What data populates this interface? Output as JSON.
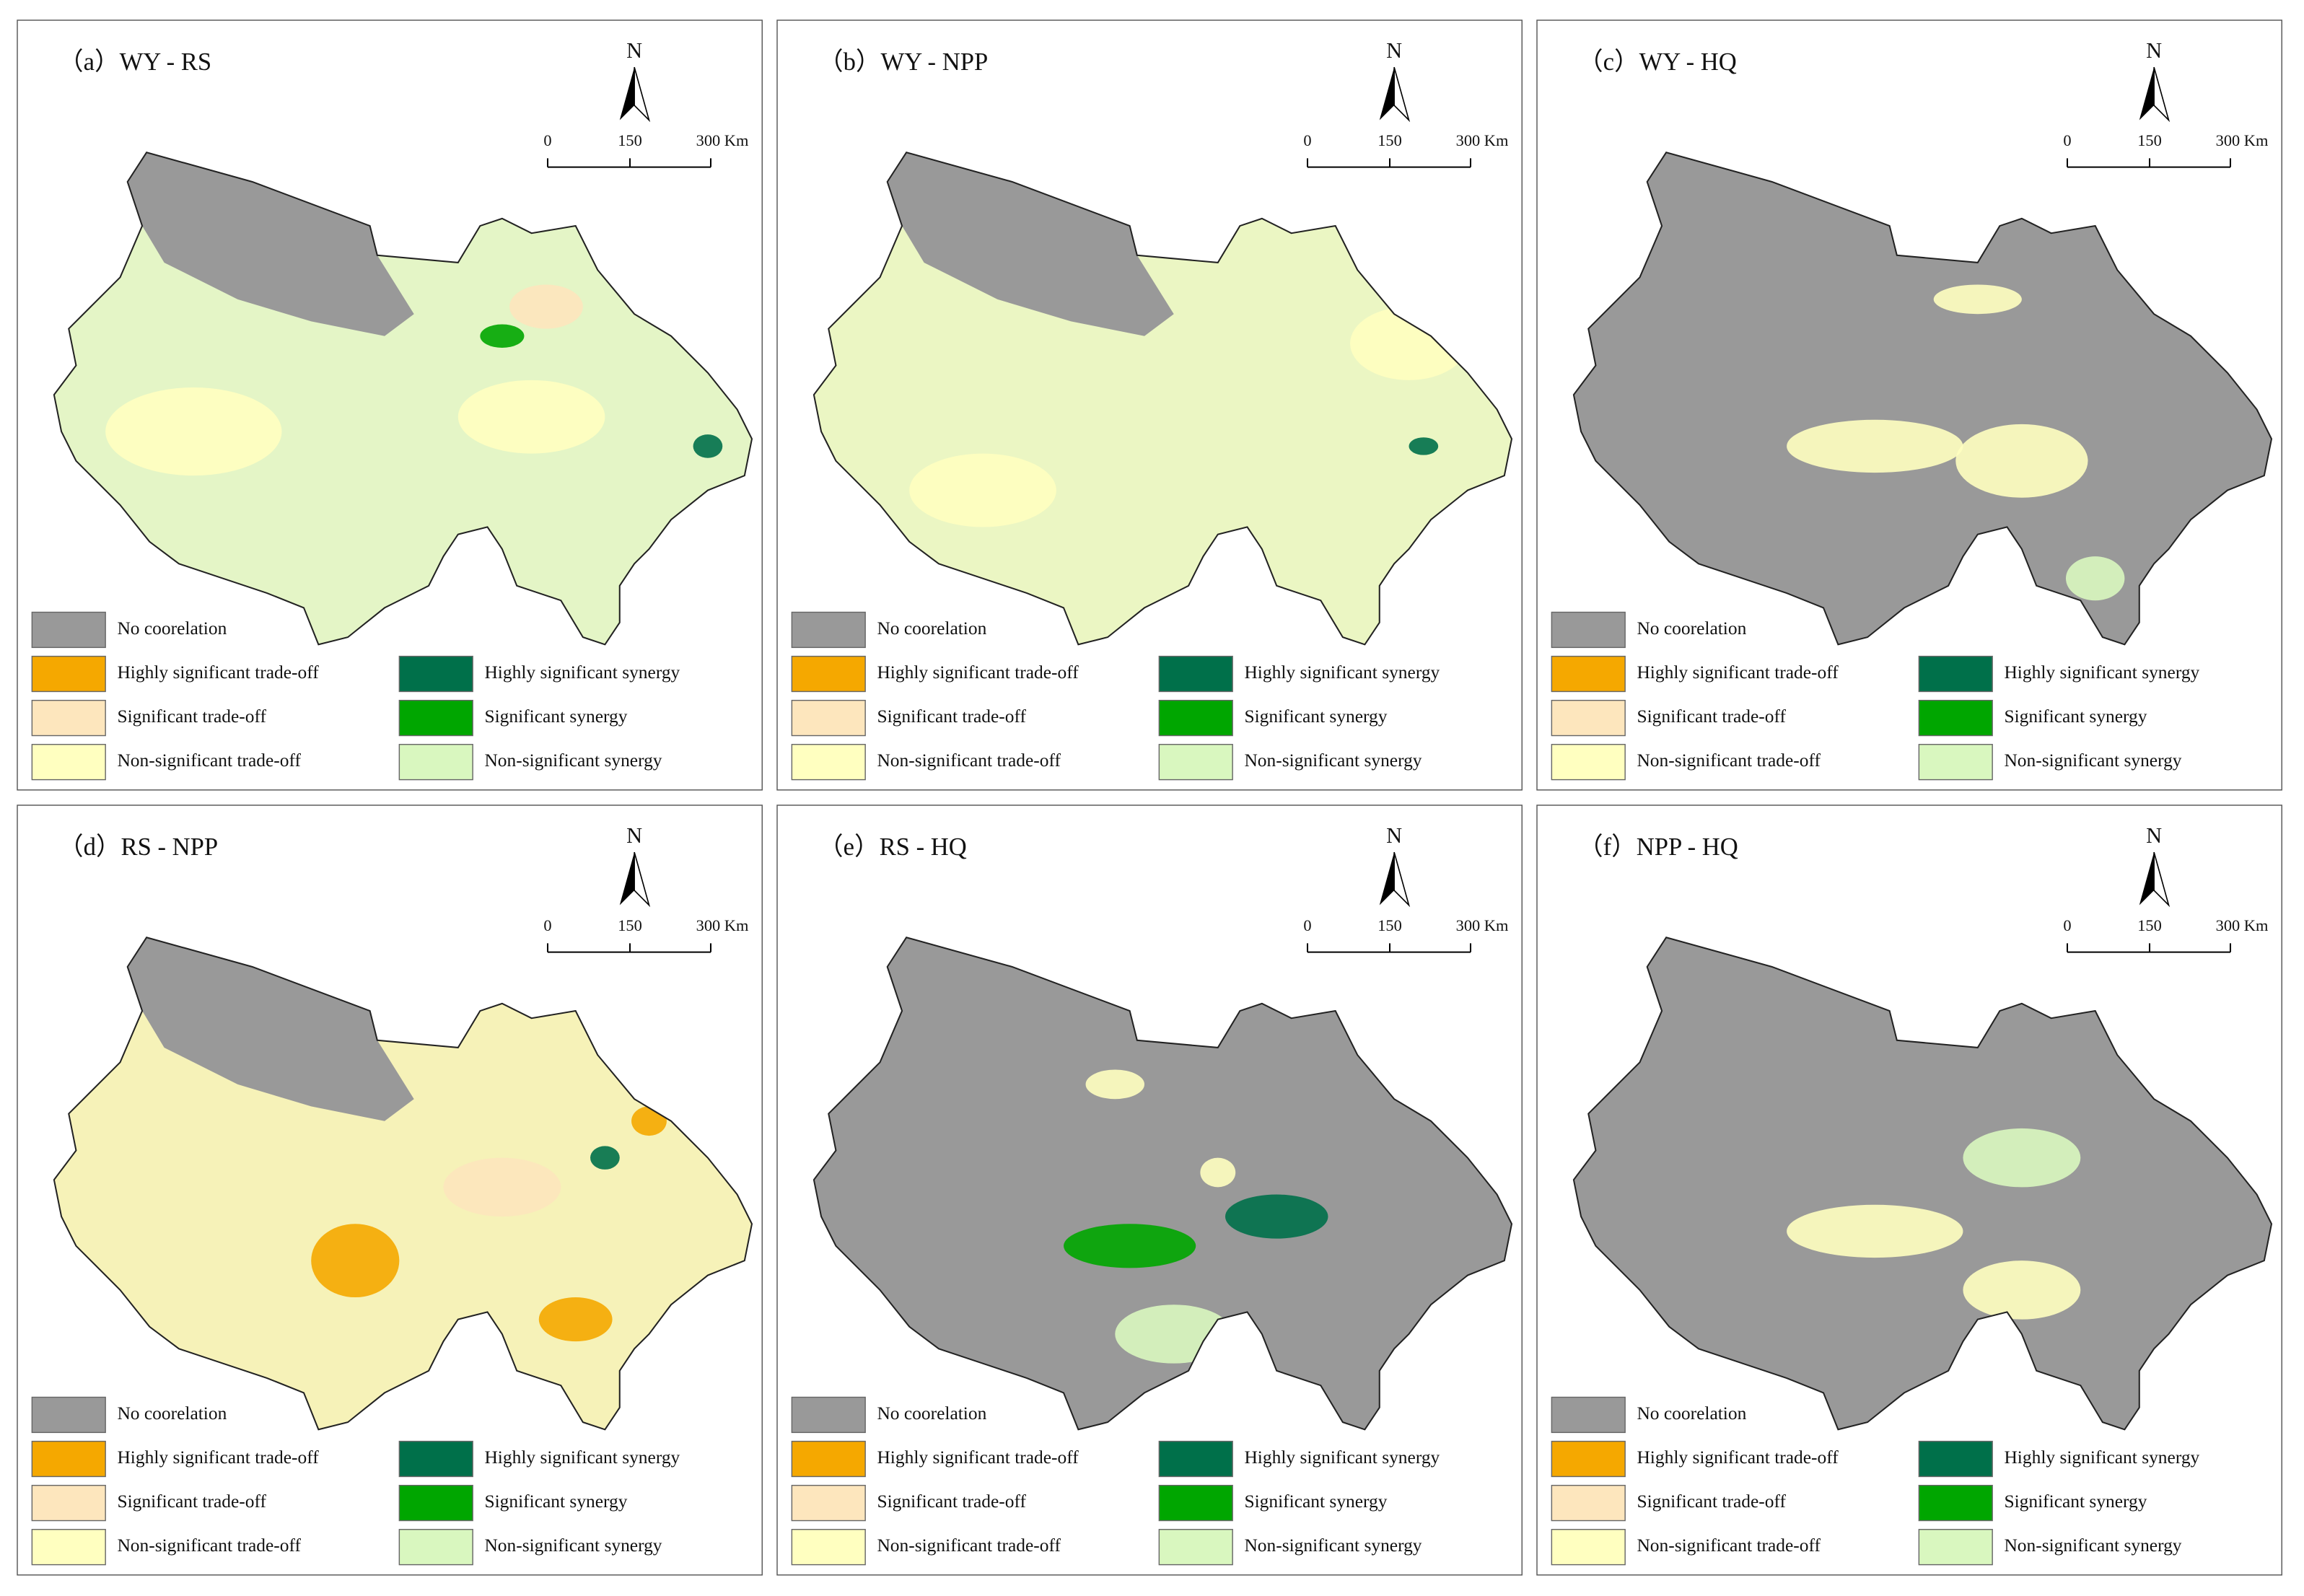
{
  "panels": [
    {
      "title": "（a）WY - RS"
    },
    {
      "title": "（b）WY - NPP"
    },
    {
      "title": "（c）WY - HQ"
    },
    {
      "title": "（d）RS - NPP"
    },
    {
      "title": "（e）RS - HQ"
    },
    {
      "title": "（f）NPP - HQ"
    }
  ],
  "north": "N",
  "scale_bar": [
    "0",
    "150",
    "300 Km"
  ],
  "legend": [
    {
      "label": "No coorelation",
      "color": "#999999"
    },
    {
      "label": "Highly significant trade-off",
      "color": "#f5a800"
    },
    {
      "label": "Significant trade-off",
      "color": "#fde6bd"
    },
    {
      "label": "Non-significant trade-off",
      "color": "#ffffc0"
    },
    {
      "label": "Highly significant synergy",
      "color": "#00704a"
    },
    {
      "label": "Significant synergy",
      "color": "#00a600"
    },
    {
      "label": "Non-significant synergy",
      "color": "#d9f7bf"
    }
  ]
}
